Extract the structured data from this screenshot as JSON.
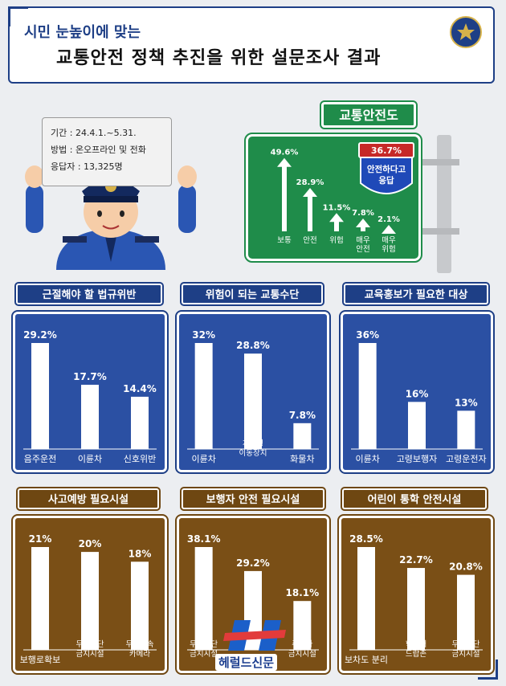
{
  "header": {
    "subtitle": "시민 눈높이에 맞는",
    "title": "교통안전 정책 추진을 위한 설문조사 결과"
  },
  "survey_info": {
    "period": "기간 : 24.4.1.~5.31.",
    "method": "방법 : 온오프라인 및 전화",
    "respondents": "응답자 : 13,325명"
  },
  "colors": {
    "blue": "#1e3f86",
    "green": "#1f8c4a",
    "brown": "#6e4712",
    "sign_red": "#c62828"
  },
  "safety_sign": {
    "title": "교통안전도",
    "shield_pct": "36.7%",
    "shield_text_1": "안전하다고",
    "shield_text_2": "응답"
  },
  "watermark": {
    "text": "헤럴드신문"
  },
  "chart_data": [
    {
      "type": "bar",
      "title": "교통안전도",
      "categories": [
        [
          "보통"
        ],
        [
          "안전"
        ],
        [
          "위험"
        ],
        [
          "매우",
          "안전"
        ],
        [
          "매우",
          "위험"
        ]
      ],
      "values": [
        49.6,
        28.9,
        11.5,
        7.8,
        2.1
      ],
      "labels": [
        "49.6%",
        "28.9%",
        "11.5%",
        "7.8%",
        "2.1%"
      ],
      "ylim": [
        0,
        50
      ]
    },
    {
      "type": "bar",
      "title": "근절해야 할 법규위반",
      "categories": [
        [
          "음주운전"
        ],
        [
          "이륜차"
        ],
        [
          "신호위반"
        ]
      ],
      "values": [
        29.2,
        17.7,
        14.4
      ],
      "labels": [
        "29.2%",
        "17.7%",
        "14.4%"
      ],
      "ylim": [
        0,
        29.2
      ]
    },
    {
      "type": "bar",
      "title": "위험이 되는 교통수단",
      "categories": [
        [
          "이륜차"
        ],
        [
          "개인형",
          "이동장치"
        ],
        [
          "화물차"
        ]
      ],
      "values": [
        32,
        28.8,
        7.8
      ],
      "labels": [
        "32%",
        "28.8%",
        "7.8%"
      ],
      "ylim": [
        0,
        32
      ]
    },
    {
      "type": "bar",
      "title": "교육홍보가 필요한 대상",
      "categories": [
        [
          "이륜차"
        ],
        [
          "고령보행자"
        ],
        [
          "고령운전자"
        ]
      ],
      "values": [
        36,
        16,
        13
      ],
      "labels": [
        "36%",
        "16%",
        "13%"
      ],
      "ylim": [
        0,
        36
      ]
    },
    {
      "type": "bar",
      "title": "사고예방 필요시설",
      "categories": [
        [
          "보행로확보"
        ],
        [
          "무인횡단",
          "금지시설"
        ],
        [
          "무인단속",
          "카메라"
        ]
      ],
      "values": [
        21,
        20,
        18
      ],
      "labels": [
        "21%",
        "20%",
        "18%"
      ],
      "ylim": [
        0,
        21
      ]
    },
    {
      "type": "bar",
      "title": "보행자 안전 필요시설",
      "categories": [
        [
          "무단횡단",
          "금지시설"
        ],
        [
          "보행로확보"
        ],
        [
          "주정차",
          "금지시설"
        ]
      ],
      "values": [
        38.1,
        29.2,
        18.1
      ],
      "labels": [
        "38.1%",
        "29.2%",
        "18.1%"
      ],
      "ylim": [
        0,
        38.1
      ]
    },
    {
      "type": "bar",
      "title": "어린이 통학 안전시설",
      "categories": [
        [
          "보차도 분리"
        ],
        [
          "학교내",
          "드랍존"
        ],
        [
          "무단횡단",
          "금지시설"
        ]
      ],
      "values": [
        28.5,
        22.7,
        20.8
      ],
      "labels": [
        "28.5%",
        "22.7%",
        "20.8%"
      ],
      "ylim": [
        0,
        28.5
      ]
    }
  ]
}
